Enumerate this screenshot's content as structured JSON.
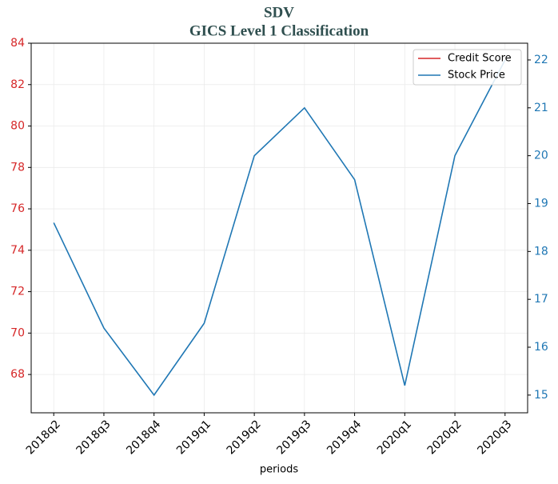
{
  "chart_data": {
    "type": "line",
    "title": "SDV",
    "subtitle": "GICS Level 1 Classification",
    "x_label": "periods",
    "categories": [
      "2018q2",
      "2018q3",
      "2018q4",
      "2019q1",
      "2019q2",
      "2019q3",
      "2019q4",
      "2020q1",
      "2020q2",
      "2020q3"
    ],
    "series": [
      {
        "name": "Credit Score",
        "color": "#d62728",
        "values": [
          null,
          null,
          null,
          null,
          null,
          null,
          null,
          null,
          null,
          null
        ]
      },
      {
        "name": "Stock Price",
        "color": "#1f77b4",
        "axis": "y2",
        "values": [
          18.6,
          16.4,
          15.0,
          16.5,
          20.0,
          21.0,
          19.5,
          15.2,
          20.0,
          22.0
        ]
      }
    ],
    "ylim": [
      66.15,
      84
    ],
    "yticks": [
      68,
      70,
      72,
      74,
      76,
      78,
      80,
      82,
      84
    ],
    "y2lim": [
      14.63,
      22.35
    ],
    "y2ticks": [
      15,
      16,
      17,
      18,
      19,
      20,
      21,
      22
    ],
    "grid": true,
    "legend": "upper right"
  }
}
